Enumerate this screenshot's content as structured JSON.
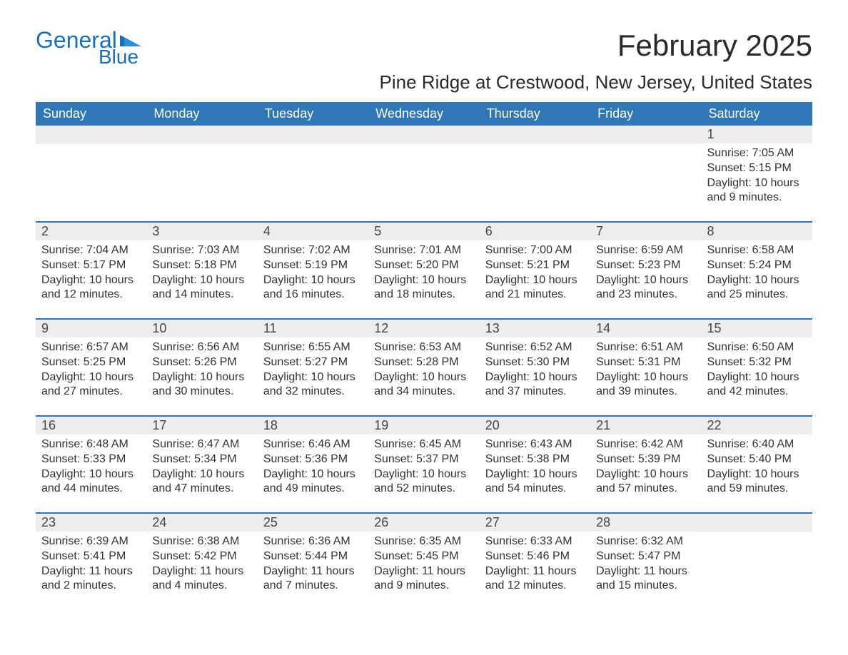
{
  "logo": {
    "general": "General",
    "blue": "Blue",
    "brand_color": "#1a6fb8"
  },
  "title": "February 2025",
  "location": "Pine Ridge at Crestwood, New Jersey, United States",
  "header_bg": "#2f77b6",
  "header_fg": "#ffffff",
  "daynum_bg": "#ededed",
  "week_border": "#2f77b6",
  "dow": [
    "Sunday",
    "Monday",
    "Tuesday",
    "Wednesday",
    "Thursday",
    "Friday",
    "Saturday"
  ],
  "weeks": [
    [
      {
        "empty": true
      },
      {
        "empty": true
      },
      {
        "empty": true
      },
      {
        "empty": true
      },
      {
        "empty": true
      },
      {
        "empty": true
      },
      {
        "day": "1",
        "sunrise": "Sunrise: 7:05 AM",
        "sunset": "Sunset: 5:15 PM",
        "daylight": "Daylight: 10 hours and 9 minutes."
      }
    ],
    [
      {
        "day": "2",
        "sunrise": "Sunrise: 7:04 AM",
        "sunset": "Sunset: 5:17 PM",
        "daylight": "Daylight: 10 hours and 12 minutes."
      },
      {
        "day": "3",
        "sunrise": "Sunrise: 7:03 AM",
        "sunset": "Sunset: 5:18 PM",
        "daylight": "Daylight: 10 hours and 14 minutes."
      },
      {
        "day": "4",
        "sunrise": "Sunrise: 7:02 AM",
        "sunset": "Sunset: 5:19 PM",
        "daylight": "Daylight: 10 hours and 16 minutes."
      },
      {
        "day": "5",
        "sunrise": "Sunrise: 7:01 AM",
        "sunset": "Sunset: 5:20 PM",
        "daylight": "Daylight: 10 hours and 18 minutes."
      },
      {
        "day": "6",
        "sunrise": "Sunrise: 7:00 AM",
        "sunset": "Sunset: 5:21 PM",
        "daylight": "Daylight: 10 hours and 21 minutes."
      },
      {
        "day": "7",
        "sunrise": "Sunrise: 6:59 AM",
        "sunset": "Sunset: 5:23 PM",
        "daylight": "Daylight: 10 hours and 23 minutes."
      },
      {
        "day": "8",
        "sunrise": "Sunrise: 6:58 AM",
        "sunset": "Sunset: 5:24 PM",
        "daylight": "Daylight: 10 hours and 25 minutes."
      }
    ],
    [
      {
        "day": "9",
        "sunrise": "Sunrise: 6:57 AM",
        "sunset": "Sunset: 5:25 PM",
        "daylight": "Daylight: 10 hours and 27 minutes."
      },
      {
        "day": "10",
        "sunrise": "Sunrise: 6:56 AM",
        "sunset": "Sunset: 5:26 PM",
        "daylight": "Daylight: 10 hours and 30 minutes."
      },
      {
        "day": "11",
        "sunrise": "Sunrise: 6:55 AM",
        "sunset": "Sunset: 5:27 PM",
        "daylight": "Daylight: 10 hours and 32 minutes."
      },
      {
        "day": "12",
        "sunrise": "Sunrise: 6:53 AM",
        "sunset": "Sunset: 5:28 PM",
        "daylight": "Daylight: 10 hours and 34 minutes."
      },
      {
        "day": "13",
        "sunrise": "Sunrise: 6:52 AM",
        "sunset": "Sunset: 5:30 PM",
        "daylight": "Daylight: 10 hours and 37 minutes."
      },
      {
        "day": "14",
        "sunrise": "Sunrise: 6:51 AM",
        "sunset": "Sunset: 5:31 PM",
        "daylight": "Daylight: 10 hours and 39 minutes."
      },
      {
        "day": "15",
        "sunrise": "Sunrise: 6:50 AM",
        "sunset": "Sunset: 5:32 PM",
        "daylight": "Daylight: 10 hours and 42 minutes."
      }
    ],
    [
      {
        "day": "16",
        "sunrise": "Sunrise: 6:48 AM",
        "sunset": "Sunset: 5:33 PM",
        "daylight": "Daylight: 10 hours and 44 minutes."
      },
      {
        "day": "17",
        "sunrise": "Sunrise: 6:47 AM",
        "sunset": "Sunset: 5:34 PM",
        "daylight": "Daylight: 10 hours and 47 minutes."
      },
      {
        "day": "18",
        "sunrise": "Sunrise: 6:46 AM",
        "sunset": "Sunset: 5:36 PM",
        "daylight": "Daylight: 10 hours and 49 minutes."
      },
      {
        "day": "19",
        "sunrise": "Sunrise: 6:45 AM",
        "sunset": "Sunset: 5:37 PM",
        "daylight": "Daylight: 10 hours and 52 minutes."
      },
      {
        "day": "20",
        "sunrise": "Sunrise: 6:43 AM",
        "sunset": "Sunset: 5:38 PM",
        "daylight": "Daylight: 10 hours and 54 minutes."
      },
      {
        "day": "21",
        "sunrise": "Sunrise: 6:42 AM",
        "sunset": "Sunset: 5:39 PM",
        "daylight": "Daylight: 10 hours and 57 minutes."
      },
      {
        "day": "22",
        "sunrise": "Sunrise: 6:40 AM",
        "sunset": "Sunset: 5:40 PM",
        "daylight": "Daylight: 10 hours and 59 minutes."
      }
    ],
    [
      {
        "day": "23",
        "sunrise": "Sunrise: 6:39 AM",
        "sunset": "Sunset: 5:41 PM",
        "daylight": "Daylight: 11 hours and 2 minutes."
      },
      {
        "day": "24",
        "sunrise": "Sunrise: 6:38 AM",
        "sunset": "Sunset: 5:42 PM",
        "daylight": "Daylight: 11 hours and 4 minutes."
      },
      {
        "day": "25",
        "sunrise": "Sunrise: 6:36 AM",
        "sunset": "Sunset: 5:44 PM",
        "daylight": "Daylight: 11 hours and 7 minutes."
      },
      {
        "day": "26",
        "sunrise": "Sunrise: 6:35 AM",
        "sunset": "Sunset: 5:45 PM",
        "daylight": "Daylight: 11 hours and 9 minutes."
      },
      {
        "day": "27",
        "sunrise": "Sunrise: 6:33 AM",
        "sunset": "Sunset: 5:46 PM",
        "daylight": "Daylight: 11 hours and 12 minutes."
      },
      {
        "day": "28",
        "sunrise": "Sunrise: 6:32 AM",
        "sunset": "Sunset: 5:47 PM",
        "daylight": "Daylight: 11 hours and 15 minutes."
      },
      {
        "empty": true
      }
    ]
  ]
}
